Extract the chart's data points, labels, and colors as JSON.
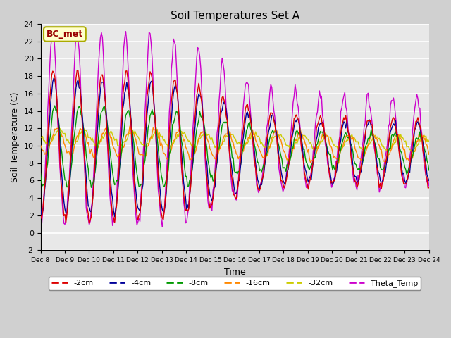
{
  "title": "Soil Temperatures Set A",
  "xlabel": "Time",
  "ylabel": "Soil Temperature (C)",
  "ylim": [
    -2,
    24
  ],
  "yticks": [
    -2,
    0,
    2,
    4,
    6,
    8,
    10,
    12,
    14,
    16,
    18,
    20,
    22,
    24
  ],
  "fig_bg_color": "#d0d0d0",
  "plot_bg_color": "#e8e8e8",
  "annotation_text": "BC_met",
  "annotation_bg": "#ffffcc",
  "annotation_fg": "#990000",
  "annotation_border": "#aaaa00",
  "line_colors": {
    "-2cm": "#dd0000",
    "-4cm": "#000099",
    "-8cm": "#009900",
    "-16cm": "#ff8800",
    "-32cm": "#cccc00",
    "Theta_Temp": "#cc00cc"
  },
  "legend_entries": [
    "-2cm",
    "-4cm",
    "-8cm",
    "-16cm",
    "-32cm",
    "Theta_Temp"
  ],
  "n_days": 16,
  "start_day": 8
}
